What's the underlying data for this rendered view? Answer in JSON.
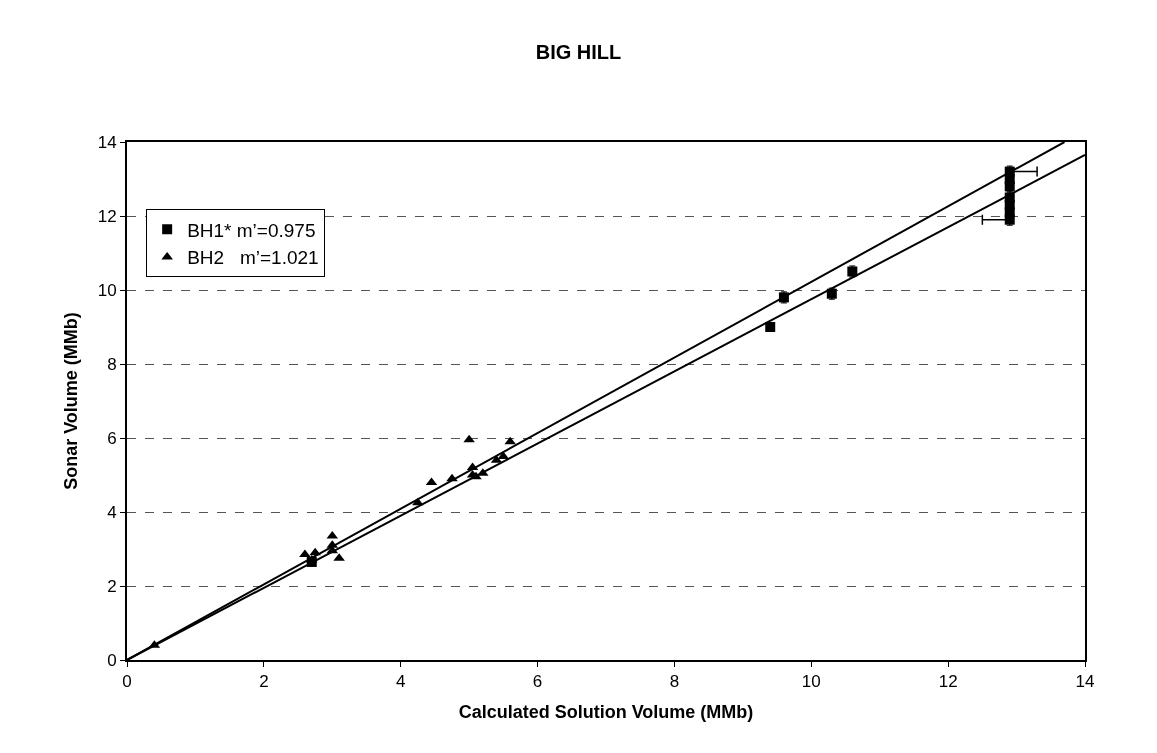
{
  "chart_data": {
    "type": "scatter",
    "title": "BIG HILL",
    "xlabel": "Calculated Solution Volume (MMb)",
    "ylabel": "Sonar Volume (MMb)",
    "xlim": [
      0,
      14
    ],
    "ylim": [
      0,
      14
    ],
    "xticks": [
      0,
      2,
      4,
      6,
      8,
      10,
      12,
      14
    ],
    "yticks": [
      0,
      2,
      4,
      6,
      8,
      10,
      12,
      14
    ],
    "grid": "y",
    "legend": "top left",
    "series": [
      {
        "name": "BH1* m’=0.975",
        "color": "#000000",
        "marker": "square",
        "x": [
          2.7,
          9.4,
          9.6,
          10.3,
          10.6,
          12.9,
          12.9,
          12.9,
          12.9,
          12.9,
          12.9,
          12.9
        ],
        "values": [
          2.65,
          9.0,
          9.8,
          9.9,
          10.5,
          11.9,
          12.1,
          12.3,
          12.5,
          12.8,
          13.0,
          13.2
        ],
        "errors": [
          0.1,
          0.1,
          0.15,
          0.15,
          0.15,
          0.15,
          0.15,
          0.15,
          0.15,
          0.15,
          0.15,
          0.15
        ],
        "xerrors": [
          null,
          null,
          null,
          null,
          null,
          [
            12.5,
            12.9
          ],
          null,
          null,
          null,
          null,
          null,
          [
            12.9,
            13.3
          ]
        ]
      },
      {
        "name": "BH2   m’=1.021",
        "color": "#000000",
        "marker": "triangle",
        "x": [
          0.4,
          2.6,
          2.7,
          2.75,
          3.0,
          3.0,
          3.0,
          3.1,
          4.25,
          4.45,
          4.75,
          5.0,
          5.05,
          5.05,
          5.1,
          5.2,
          5.4,
          5.5,
          5.6
        ],
        "values": [
          0.4,
          2.85,
          2.7,
          2.9,
          3.35,
          3.1,
          2.95,
          2.75,
          4.25,
          4.8,
          4.9,
          5.95,
          5.2,
          5.0,
          4.95,
          5.05,
          5.4,
          5.5,
          5.9
        ]
      },
      {
        "type": "line",
        "color": "#000000",
        "marker": "none",
        "x": [
          0,
          13.7
        ],
        "values": [
          0,
          14.0
        ]
      },
      {
        "type": "line",
        "color": "#000000",
        "marker": "none",
        "x": [
          0,
          14
        ],
        "values": [
          0,
          13.65
        ]
      }
    ]
  }
}
